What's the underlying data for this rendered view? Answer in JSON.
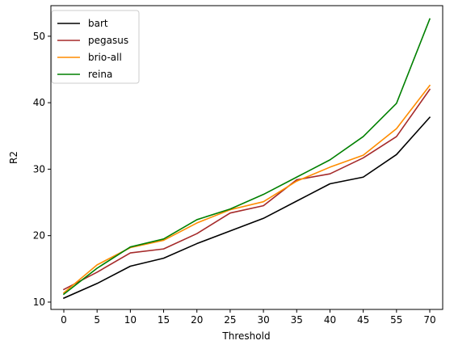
{
  "chart_data": {
    "type": "line",
    "xlabel": "Threshold",
    "ylabel": "R2",
    "categories": [
      "0",
      "5",
      "10",
      "15",
      "20",
      "25",
      "30",
      "35",
      "40",
      "45",
      "55",
      "70"
    ],
    "ylim": [
      8.9,
      54.6
    ],
    "yticks": [
      10,
      20,
      30,
      40,
      50
    ],
    "grid": false,
    "legend_position": "top-left",
    "series": [
      {
        "name": "bart",
        "color": "#000000",
        "values": [
          10.6,
          12.8,
          15.4,
          16.6,
          18.8,
          20.7,
          22.6,
          25.2,
          27.8,
          28.8,
          32.2,
          37.8
        ]
      },
      {
        "name": "pegasus",
        "color": "#a52a2a",
        "values": [
          11.9,
          14.5,
          17.4,
          18.0,
          20.3,
          23.4,
          24.5,
          28.4,
          29.3,
          31.7,
          34.9,
          42.0
        ]
      },
      {
        "name": "brio-all",
        "color": "#ff8c00",
        "values": [
          11.4,
          15.6,
          18.2,
          19.3,
          21.9,
          23.9,
          25.1,
          28.2,
          30.3,
          32.1,
          36.1,
          42.6
        ]
      },
      {
        "name": "reina",
        "color": "#008000",
        "values": [
          11.2,
          15.1,
          18.3,
          19.5,
          22.4,
          24.0,
          26.2,
          28.8,
          31.4,
          34.9,
          39.9,
          52.6
        ]
      }
    ]
  }
}
